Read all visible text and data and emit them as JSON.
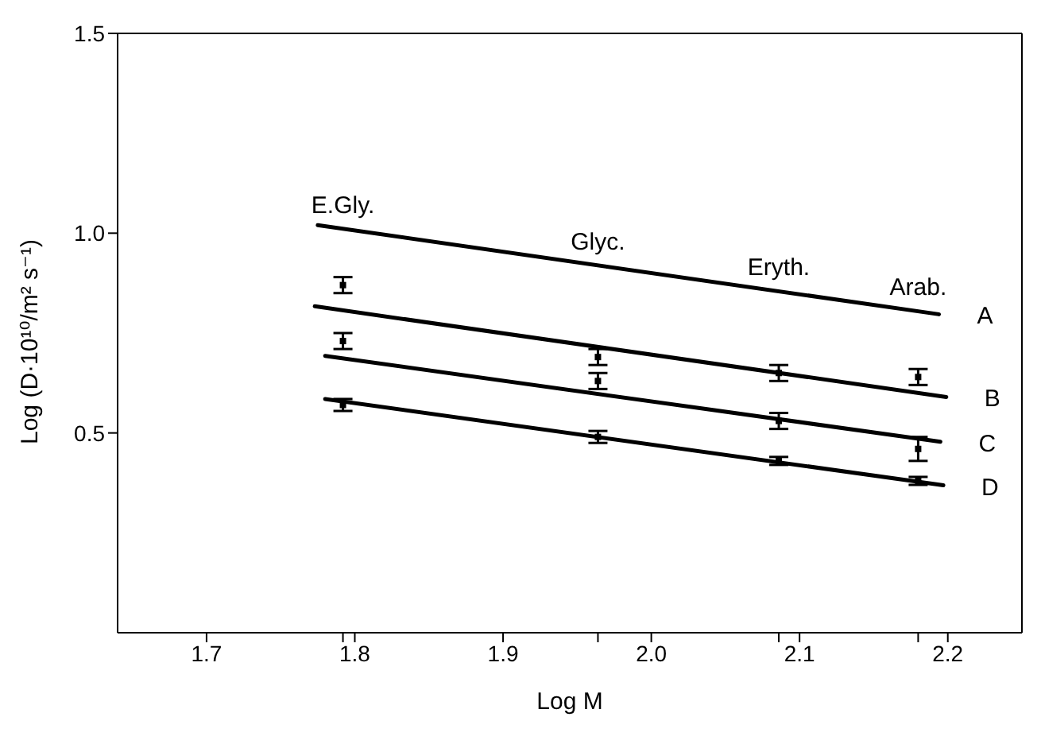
{
  "chart_data": {
    "type": "line",
    "xlabel": "Log M",
    "ylabel": "Log (D·10¹⁰/m² s⁻¹)",
    "xlim": [
      1.64,
      2.25
    ],
    "ylim": [
      0,
      1.5
    ],
    "xticks": [
      1.7,
      1.8,
      1.9,
      {
        "value": 2,
        "label": "2.0"
      },
      2.1,
      2.2,
      {
        "value": 1.792,
        "label": null
      },
      {
        "value": 1.964,
        "label": null
      },
      {
        "value": 2.086,
        "label": null
      },
      {
        "value": 2.18,
        "label": null
      }
    ],
    "yticks": [
      0.5,
      {
        "value": 1,
        "label": "1.0"
      },
      1.5
    ],
    "grid": false,
    "marker": "none",
    "annotations": [
      {
        "text": "E.Gly.",
        "x": 1.792,
        "y": 1.01
      },
      {
        "text": "Glyc.",
        "x": 1.964,
        "y": 0.92
      },
      {
        "text": "Eryth.",
        "x": 2.086,
        "y": 0.855
      },
      {
        "text": "Arab.",
        "x": 2.18,
        "y": 0.805
      }
    ],
    "series": [
      {
        "name": "A",
        "color": "#000000",
        "x": [
          1.775,
          2.194
        ],
        "values": [
          1.02,
          0.797
        ]
      },
      {
        "name": "B",
        "color": "#000000",
        "x": [
          1.773,
          2.199
        ],
        "values": [
          0.817,
          0.59
        ]
      },
      {
        "name": "C",
        "color": "#000000",
        "x": [
          1.78,
          2.195
        ],
        "values": [
          0.693,
          0.478
        ]
      },
      {
        "name": "D",
        "color": "#000000",
        "x": [
          1.78,
          2.197
        ],
        "values": [
          0.585,
          0.369
        ]
      },
      {
        "type": "scatter",
        "marker": "square",
        "color": "#000000",
        "x": [
          1.792,
          1.964,
          2.086,
          2.18
        ],
        "values": [
          0.87,
          0.69,
          0.65,
          0.64
        ],
        "errors": [
          0.02,
          0.02,
          0.02,
          0.02
        ]
      },
      {
        "type": "scatter",
        "marker": "square",
        "color": "#000000",
        "x": [
          1.792,
          1.964,
          2.086,
          2.18
        ],
        "values": [
          0.73,
          0.63,
          0.53,
          0.46
        ],
        "errors": [
          0.02,
          0.02,
          0.02,
          0.03
        ]
      },
      {
        "type": "scatter",
        "marker": "square",
        "color": "#000000",
        "x": [
          1.792,
          1.964,
          2.086,
          2.18
        ],
        "values": [
          0.57,
          0.49,
          0.43,
          0.38
        ],
        "errors": [
          0.015,
          0.015,
          0.01,
          0.01
        ]
      }
    ]
  }
}
